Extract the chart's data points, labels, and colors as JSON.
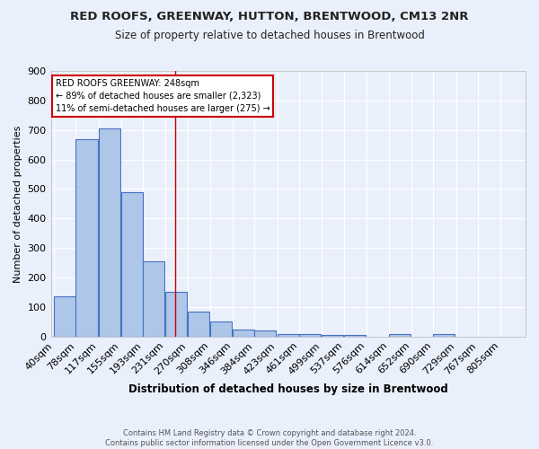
{
  "title": "RED ROOFS, GREENWAY, HUTTON, BRENTWOOD, CM13 2NR",
  "subtitle": "Size of property relative to detached houses in Brentwood",
  "xlabel": "Distribution of detached houses by size in Brentwood",
  "ylabel": "Number of detached properties",
  "categories": [
    "40sqm",
    "78sqm",
    "117sqm",
    "155sqm",
    "193sqm",
    "231sqm",
    "270sqm",
    "308sqm",
    "346sqm",
    "384sqm",
    "423sqm",
    "461sqm",
    "499sqm",
    "537sqm",
    "576sqm",
    "614sqm",
    "652sqm",
    "690sqm",
    "729sqm",
    "767sqm",
    "805sqm"
  ],
  "values": [
    135,
    670,
    705,
    490,
    255,
    152,
    85,
    52,
    25,
    20,
    10,
    9,
    5,
    5,
    0,
    10,
    0,
    10,
    0,
    0,
    0
  ],
  "bar_color": "#aec6e8",
  "bar_edge_color": "#4472c4",
  "bg_color": "#eaf0fb",
  "grid_color": "#ffffff",
  "property_line_color": "#cc0000",
  "annotation_text": "RED ROOFS GREENWAY: 248sqm\n← 89% of detached houses are smaller (2,323)\n11% of semi-detached houses are larger (275) →",
  "annotation_box_color": "#ffffff",
  "annotation_box_edge": "#cc0000",
  "footnote": "Contains HM Land Registry data © Crown copyright and database right 2024.\nContains public sector information licensed under the Open Government Licence v3.0.",
  "ylim": [
    0,
    900
  ],
  "bin_starts": [
    40,
    78,
    117,
    155,
    193,
    231,
    270,
    308,
    346,
    384,
    423,
    461,
    499,
    537,
    576,
    614,
    652,
    690,
    729,
    767,
    805
  ],
  "bin_width": 38
}
